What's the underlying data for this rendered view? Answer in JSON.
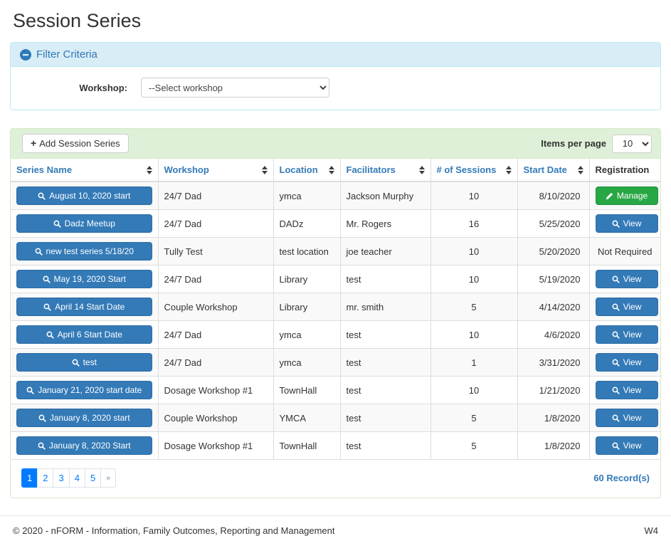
{
  "page": {
    "title": "Session Series"
  },
  "filter": {
    "title": "Filter Criteria",
    "workshop_label": "Workshop:",
    "workshop_selected_option": "--Select workshop"
  },
  "toolbar": {
    "add_button": "Add Session Series",
    "items_per_page_label": "Items per page",
    "items_per_page_value": "10"
  },
  "table": {
    "columns": [
      {
        "label": "Series Name",
        "sortable": true
      },
      {
        "label": "Workshop",
        "sortable": true
      },
      {
        "label": "Location",
        "sortable": true
      },
      {
        "label": "Facilitators",
        "sortable": true
      },
      {
        "label": "# of Sessions",
        "sortable": true
      },
      {
        "label": "Start Date",
        "sortable": true
      },
      {
        "label": "Registration",
        "sortable": false
      }
    ],
    "rows": [
      {
        "series_name": "August 10, 2020 start",
        "workshop": "24/7 Dad",
        "location": "ymca",
        "facilitators": "Jackson Murphy",
        "sessions": "10",
        "start_date": "8/10/2020",
        "registration": {
          "type": "manage",
          "label": "Manage"
        }
      },
      {
        "series_name": "Dadz Meetup",
        "workshop": "24/7 Dad",
        "location": "DADz",
        "facilitators": "Mr. Rogers",
        "sessions": "16",
        "start_date": "5/25/2020",
        "registration": {
          "type": "view",
          "label": "View"
        }
      },
      {
        "series_name": "new test series 5/18/20",
        "workshop": "Tully Test",
        "location": "test location",
        "facilitators": "joe teacher",
        "sessions": "10",
        "start_date": "5/20/2020",
        "registration": {
          "type": "text",
          "label": "Not Required"
        }
      },
      {
        "series_name": "May 19, 2020 Start",
        "workshop": "24/7 Dad",
        "location": "Library",
        "facilitators": "test",
        "sessions": "10",
        "start_date": "5/19/2020",
        "registration": {
          "type": "view",
          "label": "View"
        }
      },
      {
        "series_name": "April 14 Start Date",
        "workshop": "Couple Workshop",
        "location": "Library",
        "facilitators": "mr. smith",
        "sessions": "5",
        "start_date": "4/14/2020",
        "registration": {
          "type": "view",
          "label": "View"
        }
      },
      {
        "series_name": "April 6 Start Date",
        "workshop": "24/7 Dad",
        "location": "ymca",
        "facilitators": "test",
        "sessions": "10",
        "start_date": "4/6/2020",
        "registration": {
          "type": "view",
          "label": "View"
        }
      },
      {
        "series_name": "test",
        "workshop": "24/7 Dad",
        "location": "ymca",
        "facilitators": "test",
        "sessions": "1",
        "start_date": "3/31/2020",
        "registration": {
          "type": "view",
          "label": "View"
        }
      },
      {
        "series_name": "January 21, 2020 start date",
        "workshop": "Dosage Workshop #1",
        "location": "TownHall",
        "facilitators": "test",
        "sessions": "10",
        "start_date": "1/21/2020",
        "registration": {
          "type": "view",
          "label": "View"
        }
      },
      {
        "series_name": "January 8, 2020 start",
        "workshop": "Couple Workshop",
        "location": "YMCA",
        "facilitators": "test",
        "sessions": "5",
        "start_date": "1/8/2020",
        "registration": {
          "type": "view",
          "label": "View"
        }
      },
      {
        "series_name": "January 8, 2020 Start",
        "workshop": "Dosage Workshop #1",
        "location": "TownHall",
        "facilitators": "test",
        "sessions": "5",
        "start_date": "1/8/2020",
        "registration": {
          "type": "view",
          "label": "View"
        }
      }
    ]
  },
  "pagination": {
    "pages": [
      "1",
      "2",
      "3",
      "4",
      "5",
      "»"
    ],
    "active": "1",
    "records": "60 Record(s)"
  },
  "footer": {
    "copyright": "© 2020 - nFORM - Information, Family Outcomes, Reporting and Management",
    "version": "W4"
  },
  "icons": {
    "filter_collapse": "minus-circle-icon",
    "series_button": "search-icon",
    "view_button": "search-icon",
    "manage_button": "pencil-icon",
    "add_button": "plus-icon",
    "sort": "sort-arrows-icon"
  },
  "colors": {
    "primary_blue": "#337ab7",
    "primary_blue_border": "#2e6da4",
    "success_green": "#28a745",
    "filter_header_bg": "#d9edf7",
    "filter_header_text": "#3178b5",
    "toolbar_bg": "#dff0d8",
    "pagination_active": "#007bff",
    "row_stripe": "#f9f9f9"
  }
}
